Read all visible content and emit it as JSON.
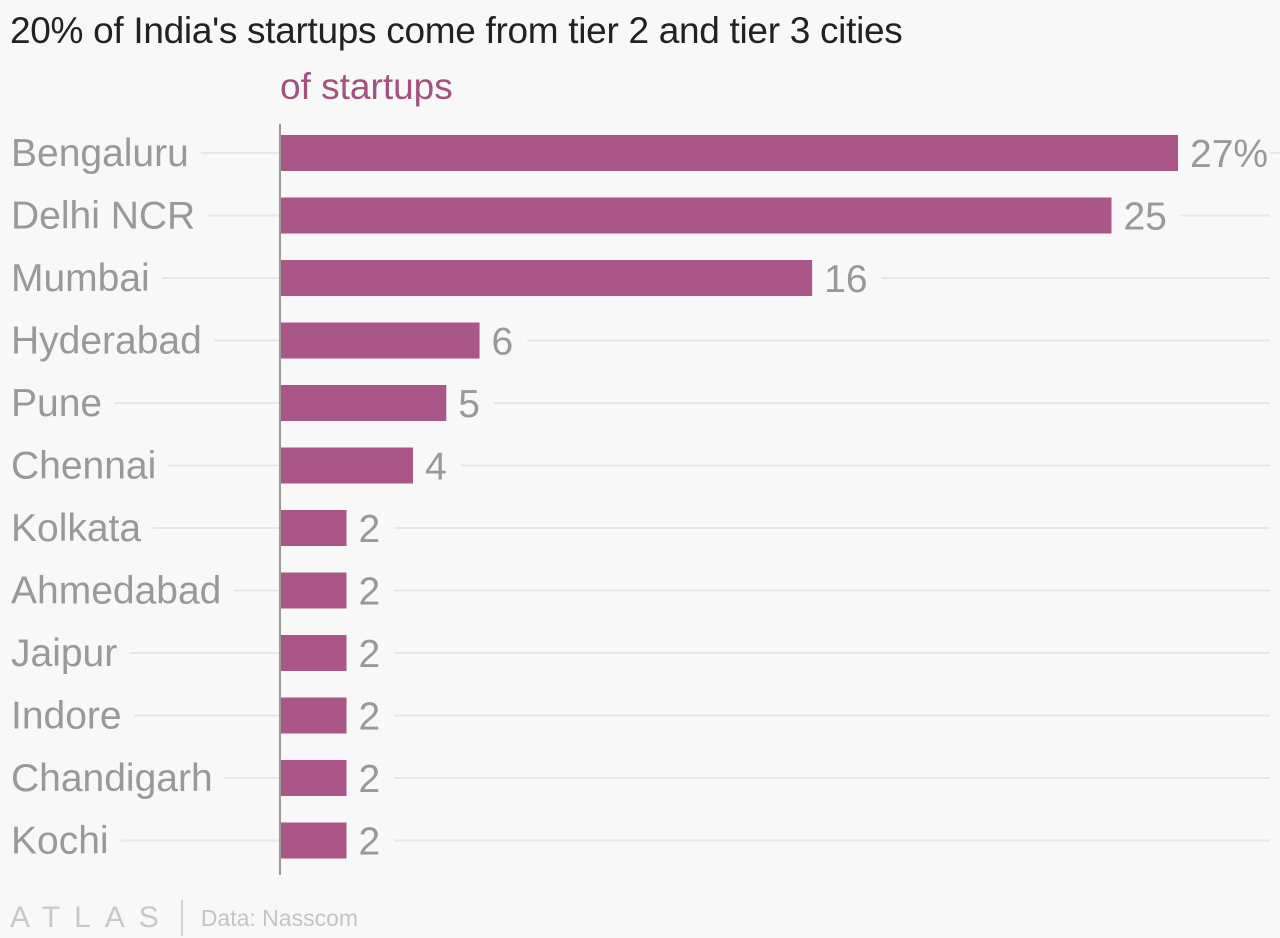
{
  "chart_data": {
    "type": "bar",
    "orientation": "horizontal",
    "title": "20% of India's startups come from tier 2 and tier 3 cities",
    "series": [
      {
        "name": "of startups",
        "values": [
          27,
          25,
          16,
          6,
          5,
          4,
          2,
          2,
          2,
          2,
          2,
          2
        ]
      }
    ],
    "categories": [
      "Bengaluru",
      "Delhi NCR",
      "Mumbai",
      "Hyderabad",
      "Pune",
      "Chennai",
      "Kolkata",
      "Ahmedabad",
      "Jaipur",
      "Indore",
      "Chandigarh",
      "Kochi"
    ],
    "value_labels": [
      "27%",
      "25",
      "16",
      "6",
      "5",
      "4",
      "2",
      "2",
      "2",
      "2",
      "2",
      "2"
    ],
    "xlim": [
      0,
      27
    ],
    "grid": true,
    "legend": "none",
    "colors": {
      "bar": "#aa5686",
      "series_label": "#a3517f",
      "category_text": "#999999",
      "value_text": "#999999",
      "grid": "#e6e6e6",
      "axis": "#999999"
    }
  },
  "footer": {
    "brand": "ATLAS",
    "source": "Data: Nasscom"
  }
}
